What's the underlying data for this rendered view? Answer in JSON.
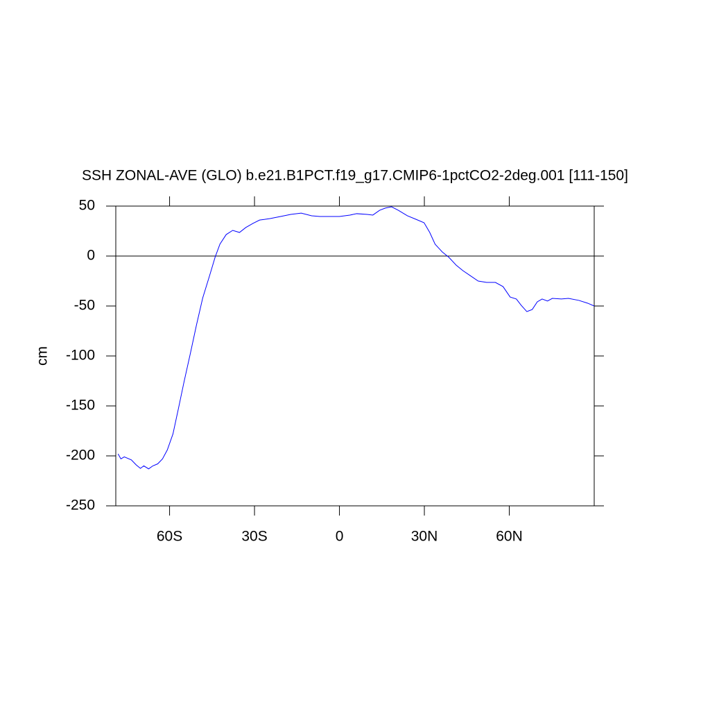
{
  "chart_data": {
    "type": "line",
    "title": "SSH ZONAL-AVE (GLO) b.e21.B1PCT.f19_g17.CMIP6-1pctCO2-2deg.001 [111-150]",
    "y_label": "cm",
    "x": [
      -78.2,
      -77.2,
      -76,
      -73.5,
      -71.8,
      -70.3,
      -69.1,
      -67.4,
      -65.9,
      -64.2,
      -62.5,
      -60.8,
      -58.8,
      -56.9,
      -54.9,
      -52.7,
      -50.5,
      -48.3,
      -45.8,
      -43.9,
      -42.2,
      -40,
      -37.7,
      -35.3,
      -33.1,
      -30.6,
      -28.2,
      -24.5,
      -20.8,
      -17.2,
      -13.5,
      -9.8,
      -6.9,
      -3.7,
      0,
      3.7,
      6.1,
      9.8,
      11.8,
      14.2,
      16.2,
      18.4,
      20.8,
      24,
      27,
      29.9,
      31.9,
      33.8,
      36.3,
      38.7,
      41.2,
      43.6,
      46.1,
      49,
      52,
      55.1,
      57.8,
      60.3,
      62.5,
      64.2,
      66.2,
      68.1,
      69.9,
      71.6,
      73.5,
      75.2,
      78.4,
      80.9,
      84.6,
      87.7,
      90
    ],
    "series": [
      {
        "color": "#0000ff",
        "values": [
          -198,
          -203,
          -201,
          -204,
          -209,
          -212.5,
          -210,
          -213,
          -210,
          -208,
          -203,
          -194,
          -178,
          -153,
          -126,
          -98,
          -69,
          -42,
          -19,
          -1,
          12,
          21.5,
          25.7,
          23.6,
          28.5,
          32.6,
          36,
          37.5,
          39.6,
          41.7,
          43,
          40.3,
          39.6,
          39.6,
          39.6,
          41,
          42.4,
          41.7,
          41,
          45.8,
          48,
          49.3,
          45.8,
          40.3,
          36.8,
          33.3,
          23.6,
          11.8,
          4.2,
          -1.4,
          -9,
          -14.6,
          -19.4,
          -25,
          -26.4,
          -26.4,
          -30.6,
          -41,
          -43,
          -49.3,
          -55.6,
          -53.5,
          -45.8,
          -43,
          -45,
          -42.4,
          -43,
          -42.4,
          -44.4,
          -47.2,
          -50
        ]
      }
    ],
    "xlim": [
      -79,
      90
    ],
    "xticks": [
      {
        "value": -60,
        "label": "60S"
      },
      {
        "value": -30,
        "label": "30S"
      },
      0,
      {
        "value": 30,
        "label": "30N"
      },
      {
        "value": 60,
        "label": "60N"
      }
    ],
    "ylim": [
      -250,
      50
    ],
    "yticks": [
      -250,
      -200,
      -150,
      -100,
      -50,
      0,
      50
    ],
    "reference_line": 0
  }
}
